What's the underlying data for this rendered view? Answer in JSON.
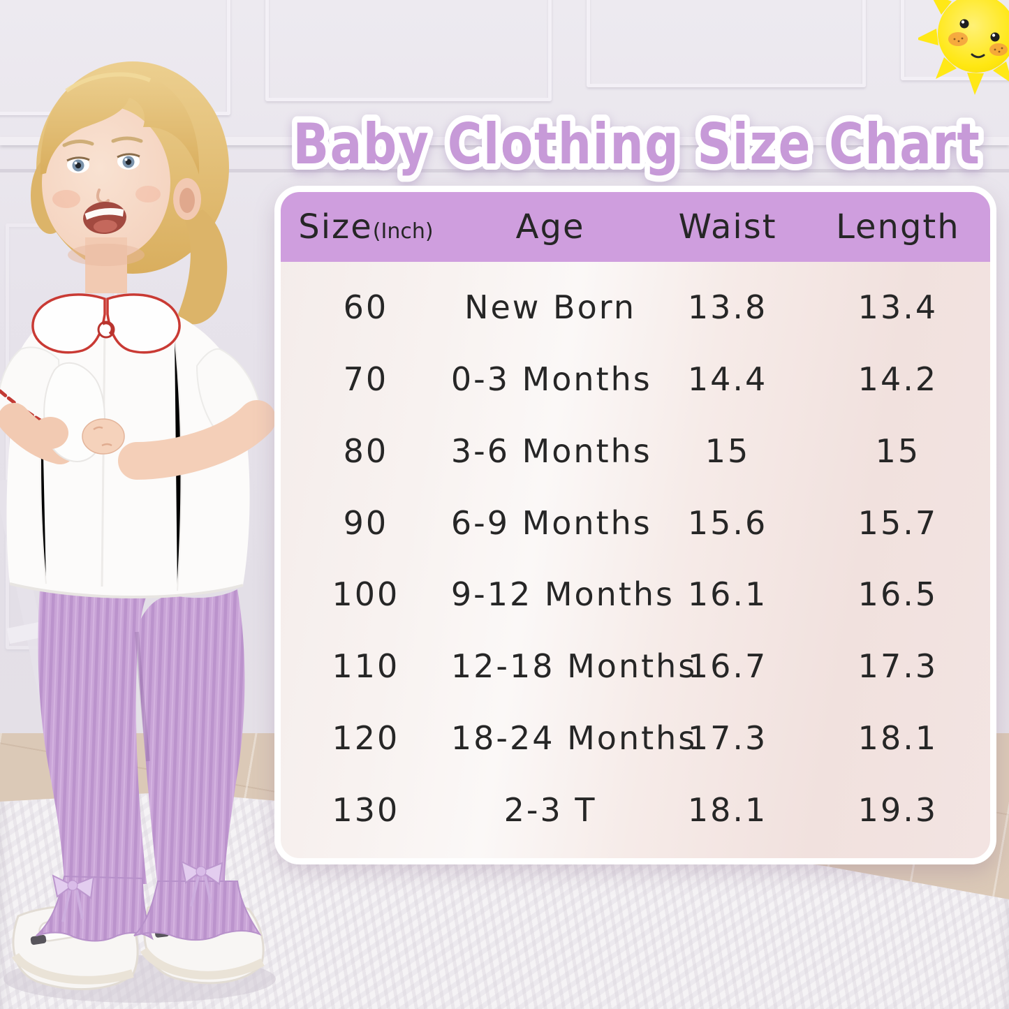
{
  "chart_data": {
    "type": "table",
    "title": "Baby Clothing Size Chart",
    "columns": [
      "Size(Inch)",
      "Age",
      "Waist",
      "Length"
    ],
    "rows": [
      [
        "60",
        "New Born",
        "13.8",
        "13.4"
      ],
      [
        "70",
        "0-3 Months",
        "14.4",
        "14.2"
      ],
      [
        "80",
        "3-6 Months",
        "15",
        "15"
      ],
      [
        "90",
        "6-9 Months",
        "15.6",
        "15.7"
      ],
      [
        "100",
        "9-12 Months",
        "16.1",
        "16.5"
      ],
      [
        "110",
        "12-18 Months",
        "16.7",
        "17.3"
      ],
      [
        "120",
        "18-24 Months",
        "17.3",
        "18.1"
      ],
      [
        "130",
        "2-3 T",
        "18.1",
        "19.3"
      ]
    ]
  },
  "table": {
    "header": {
      "size": "Size",
      "size_unit": "(Inch)",
      "age": "Age",
      "waist": "Waist",
      "length": "Length"
    }
  },
  "icons": {
    "sun": "sun-icon"
  },
  "colors": {
    "title_text": "#c79ad8",
    "header_bg": "#cf9ede",
    "table_text": "#262626",
    "panel_border": "#ffffff",
    "sun_yellow": "#ffe817",
    "leggings": "#c9a4d7",
    "collar_trim": "#c93a34"
  }
}
